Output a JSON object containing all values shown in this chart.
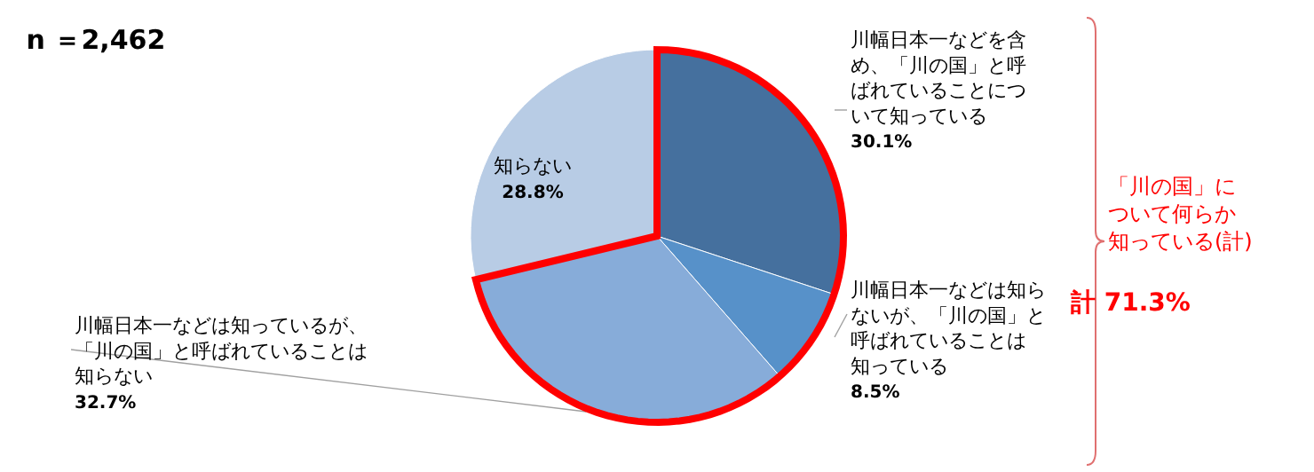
{
  "chart_data": {
    "type": "pie",
    "title": "n ＝2,462",
    "categories": [
      "川幅日本一などを含め、「川の国」と呼ばれていることについて知っている",
      "川幅日本一などは知らないが、「川の国」と呼ばれていることは知っている",
      "川幅日本一などは知っているが、「川の国」と呼ばれていることは知らない",
      "知らない"
    ],
    "values": [
      30.1,
      8.5,
      32.7,
      28.8
    ],
    "colors": [
      "#45709e",
      "#5791c9",
      "#87acd9",
      "#b8cce5"
    ],
    "value_labels": [
      "30.1%",
      "8.5%",
      "32.7%",
      "28.8%"
    ],
    "annotations": [
      "「川の国」について何らか知っている(計)",
      "計 71.3%"
    ]
  }
}
